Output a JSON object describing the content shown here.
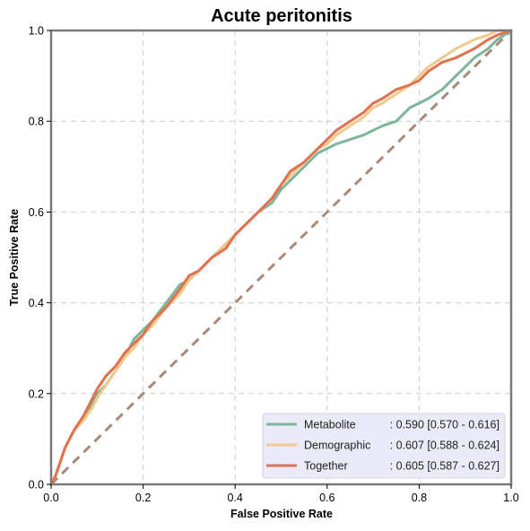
{
  "chart_data": {
    "type": "line",
    "title": "Acute peritonitis",
    "xlabel": "False Positive Rate",
    "ylabel": "True Positive Rate",
    "xlim": [
      0.0,
      1.0
    ],
    "ylim": [
      0.0,
      1.0
    ],
    "xticks": [
      "0.0",
      "0.2",
      "0.4",
      "0.6",
      "0.8",
      "1.0"
    ],
    "yticks": [
      "0.0",
      "0.2",
      "0.4",
      "0.6",
      "0.8",
      "1.0"
    ],
    "grid": true,
    "legend_position": "bottom-right",
    "diagonal": {
      "color": "#a98a7a",
      "x": [
        0.0,
        1.0
      ],
      "y": [
        0.0,
        1.0
      ]
    },
    "series": [
      {
        "name": "Metabolite",
        "auc_text": ": 0.590 [0.570 - 0.616]",
        "color": "#7fb59a",
        "x": [
          0.0,
          0.01,
          0.02,
          0.03,
          0.05,
          0.07,
          0.09,
          0.1,
          0.12,
          0.14,
          0.16,
          0.18,
          0.2,
          0.22,
          0.25,
          0.28,
          0.3,
          0.32,
          0.35,
          0.38,
          0.4,
          0.42,
          0.45,
          0.48,
          0.5,
          0.52,
          0.55,
          0.58,
          0.6,
          0.62,
          0.65,
          0.68,
          0.7,
          0.72,
          0.75,
          0.78,
          0.8,
          0.82,
          0.85,
          0.88,
          0.9,
          0.92,
          0.95,
          0.97,
          1.0
        ],
        "y": [
          0.0,
          0.02,
          0.05,
          0.08,
          0.12,
          0.15,
          0.18,
          0.2,
          0.22,
          0.25,
          0.28,
          0.32,
          0.34,
          0.36,
          0.4,
          0.44,
          0.45,
          0.47,
          0.5,
          0.53,
          0.55,
          0.57,
          0.6,
          0.62,
          0.65,
          0.67,
          0.7,
          0.73,
          0.74,
          0.75,
          0.76,
          0.77,
          0.78,
          0.79,
          0.8,
          0.83,
          0.84,
          0.85,
          0.87,
          0.9,
          0.92,
          0.94,
          0.96,
          0.98,
          1.0
        ]
      },
      {
        "name": "Demographic",
        "auc_text": ": 0.607 [0.588 - 0.624]",
        "color": "#f1c98b",
        "x": [
          0.0,
          0.01,
          0.02,
          0.03,
          0.05,
          0.07,
          0.09,
          0.1,
          0.12,
          0.14,
          0.16,
          0.18,
          0.2,
          0.22,
          0.25,
          0.28,
          0.3,
          0.32,
          0.35,
          0.38,
          0.4,
          0.42,
          0.45,
          0.48,
          0.5,
          0.52,
          0.55,
          0.58,
          0.6,
          0.62,
          0.65,
          0.68,
          0.7,
          0.72,
          0.75,
          0.78,
          0.8,
          0.82,
          0.85,
          0.88,
          0.9,
          0.92,
          0.95,
          0.97,
          1.0
        ],
        "y": [
          0.0,
          0.02,
          0.05,
          0.08,
          0.12,
          0.14,
          0.17,
          0.19,
          0.22,
          0.25,
          0.28,
          0.3,
          0.33,
          0.35,
          0.39,
          0.42,
          0.45,
          0.47,
          0.5,
          0.53,
          0.55,
          0.57,
          0.6,
          0.63,
          0.66,
          0.68,
          0.71,
          0.74,
          0.75,
          0.77,
          0.79,
          0.81,
          0.83,
          0.84,
          0.86,
          0.88,
          0.9,
          0.92,
          0.94,
          0.96,
          0.97,
          0.98,
          0.99,
          1.0,
          1.0
        ]
      },
      {
        "name": "Together",
        "auc_text": ": 0.605 [0.587 - 0.627]",
        "color": "#e2714f",
        "x": [
          0.0,
          0.01,
          0.02,
          0.03,
          0.05,
          0.07,
          0.09,
          0.1,
          0.12,
          0.14,
          0.16,
          0.18,
          0.2,
          0.22,
          0.25,
          0.28,
          0.3,
          0.32,
          0.35,
          0.38,
          0.4,
          0.42,
          0.45,
          0.48,
          0.5,
          0.52,
          0.55,
          0.58,
          0.6,
          0.62,
          0.65,
          0.68,
          0.7,
          0.72,
          0.75,
          0.78,
          0.8,
          0.82,
          0.85,
          0.88,
          0.9,
          0.92,
          0.95,
          0.97,
          1.0
        ],
        "y": [
          0.0,
          0.02,
          0.05,
          0.08,
          0.12,
          0.15,
          0.19,
          0.21,
          0.24,
          0.26,
          0.29,
          0.31,
          0.33,
          0.36,
          0.39,
          0.43,
          0.46,
          0.47,
          0.5,
          0.52,
          0.55,
          0.57,
          0.6,
          0.63,
          0.66,
          0.69,
          0.71,
          0.74,
          0.76,
          0.78,
          0.8,
          0.82,
          0.84,
          0.85,
          0.87,
          0.88,
          0.89,
          0.91,
          0.93,
          0.94,
          0.95,
          0.96,
          0.98,
          0.99,
          1.0
        ]
      }
    ]
  }
}
